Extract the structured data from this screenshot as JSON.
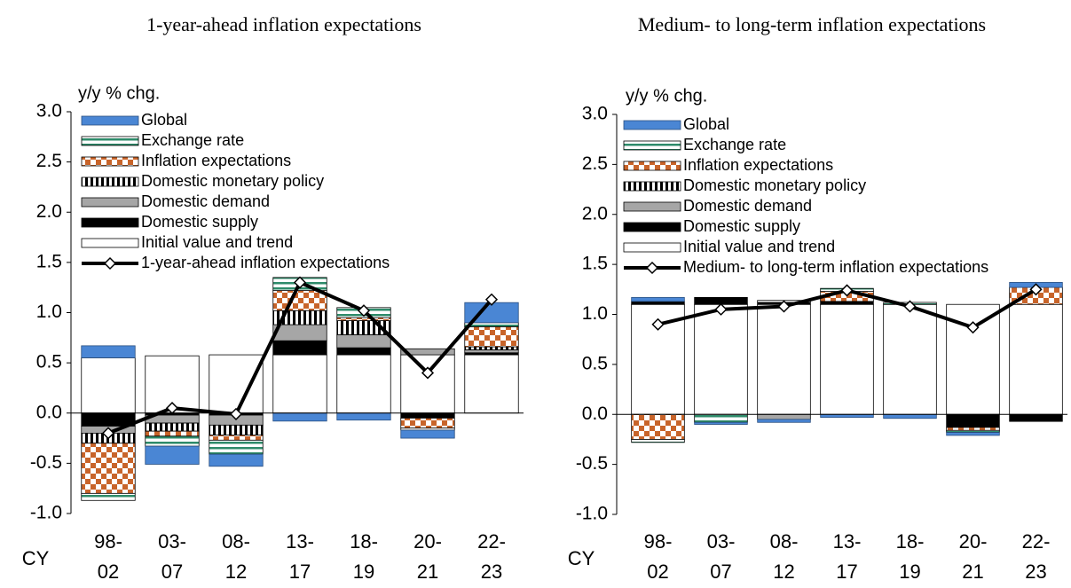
{
  "chart_data": [
    {
      "type": "bar",
      "title": "1-year-ahead inflation expectations",
      "y_label": "y/y % chg.",
      "x_label": "CY",
      "categories": [
        "98-\n02",
        "03-\n07",
        "08-\n12",
        "13-\n17",
        "18-\n19",
        "20-\n21",
        "22-\n23"
      ],
      "ylim": [
        -1.0,
        3.0
      ],
      "yticks": [
        {
          "value": -1.0,
          "label": "-1.0"
        },
        {
          "value": -0.5,
          "label": "-0.5"
        },
        {
          "value": 0,
          "label": "0.0"
        },
        {
          "value": 0.5,
          "label": "0.5"
        },
        {
          "value": 1.0,
          "label": "1.0"
        },
        {
          "value": 1.5,
          "label": "1.5"
        },
        {
          "value": 2.0,
          "label": "2.0"
        },
        {
          "value": 2.5,
          "label": "2.5"
        },
        {
          "value": 3.0,
          "label": "3.0"
        }
      ],
      "series": [
        {
          "name": "Initial value and trend",
          "color": "#ffffff",
          "pattern": "solid",
          "values": [
            0.55,
            0.57,
            0.58,
            0.58,
            0.58,
            0.58,
            0.58
          ]
        },
        {
          "name": "Domestic supply",
          "color": "#000000",
          "pattern": "solid",
          "values": [
            -0.13,
            -0.02,
            -0.02,
            0.14,
            0.07,
            -0.05,
            0.02
          ]
        },
        {
          "name": "Domestic demand",
          "color": "#a6a6a6",
          "pattern": "solid",
          "values": [
            -0.07,
            -0.08,
            -0.1,
            0.16,
            0.13,
            0.06,
            0.03
          ]
        },
        {
          "name": "Domestic monetary policy",
          "color": "#000000",
          "pattern": "vstripe",
          "values": [
            -0.1,
            -0.08,
            -0.1,
            0.14,
            0.14,
            0,
            0.03
          ]
        },
        {
          "name": "Inflation expectations",
          "color": "#c8642a",
          "pattern": "checker",
          "values": [
            -0.5,
            -0.05,
            -0.05,
            0.2,
            0.03,
            -0.1,
            0.2
          ]
        },
        {
          "name": "Exchange rate",
          "color": "#2e8b6a",
          "pattern": "hstripe",
          "values": [
            -0.07,
            -0.1,
            -0.14,
            0.13,
            0.1,
            -0.02,
            0.04
          ]
        },
        {
          "name": "Global",
          "color": "#4a86d4",
          "pattern": "solid",
          "values": [
            0.12,
            -0.18,
            -0.12,
            -0.08,
            -0.07,
            -0.08,
            0.2
          ]
        },
        {
          "name": "1-year-ahead inflation expectations",
          "type": "line",
          "color": "#000000",
          "values": [
            -0.2,
            0.05,
            -0.01,
            1.3,
            1.02,
            0.4,
            1.13
          ]
        }
      ]
    },
    {
      "type": "bar",
      "title": "Medium- to long-term inflation expectations",
      "y_label": "y/y % chg.",
      "x_label": "CY",
      "categories": [
        "98-\n02",
        "03-\n07",
        "08-\n12",
        "13-\n17",
        "18-\n19",
        "20-\n21",
        "22-\n23"
      ],
      "ylim": [
        -1.0,
        3.0
      ],
      "yticks": [
        {
          "value": -1.0,
          "label": "-1.0"
        },
        {
          "value": -0.5,
          "label": "-0.5"
        },
        {
          "value": 0,
          "label": "0.0"
        },
        {
          "value": 0.5,
          "label": "0.5"
        },
        {
          "value": 1.0,
          "label": "1.0"
        },
        {
          "value": 1.5,
          "label": "1.5"
        },
        {
          "value": 2.0,
          "label": "2.0"
        },
        {
          "value": 2.5,
          "label": "2.5"
        },
        {
          "value": 3.0,
          "label": "3.0"
        }
      ],
      "series": [
        {
          "name": "Initial value and trend",
          "color": "#ffffff",
          "pattern": "solid",
          "values": [
            1.1,
            1.1,
            1.1,
            1.1,
            1.1,
            1.1,
            1.1
          ]
        },
        {
          "name": "Domestic supply",
          "color": "#000000",
          "pattern": "solid",
          "values": [
            0.03,
            0.07,
            0.02,
            0.03,
            0,
            -0.13,
            -0.07
          ]
        },
        {
          "name": "Domestic demand",
          "color": "#a6a6a6",
          "pattern": "solid",
          "values": [
            0,
            0,
            -0.05,
            0,
            0,
            0,
            0
          ]
        },
        {
          "name": "Domestic monetary policy",
          "color": "#000000",
          "pattern": "vstripe",
          "values": [
            0,
            0,
            0,
            0,
            0,
            0,
            0
          ]
        },
        {
          "name": "Inflation expectations",
          "color": "#c8642a",
          "pattern": "checker",
          "values": [
            -0.25,
            0,
            0,
            0.1,
            0,
            -0.03,
            0.17
          ]
        },
        {
          "name": "Exchange rate",
          "color": "#2e8b6a",
          "pattern": "hstripe",
          "values": [
            -0.03,
            -0.08,
            0.02,
            0.03,
            0.02,
            -0.02,
            0
          ]
        },
        {
          "name": "Global",
          "color": "#4a86d4",
          "pattern": "solid",
          "values": [
            0.04,
            -0.02,
            -0.03,
            -0.03,
            -0.04,
            -0.03,
            0.05
          ]
        },
        {
          "name": "Medium- to long-term inflation expectations",
          "type": "line",
          "color": "#000000",
          "values": [
            0.9,
            1.05,
            1.08,
            1.24,
            1.08,
            0.87,
            1.25
          ]
        }
      ]
    }
  ]
}
